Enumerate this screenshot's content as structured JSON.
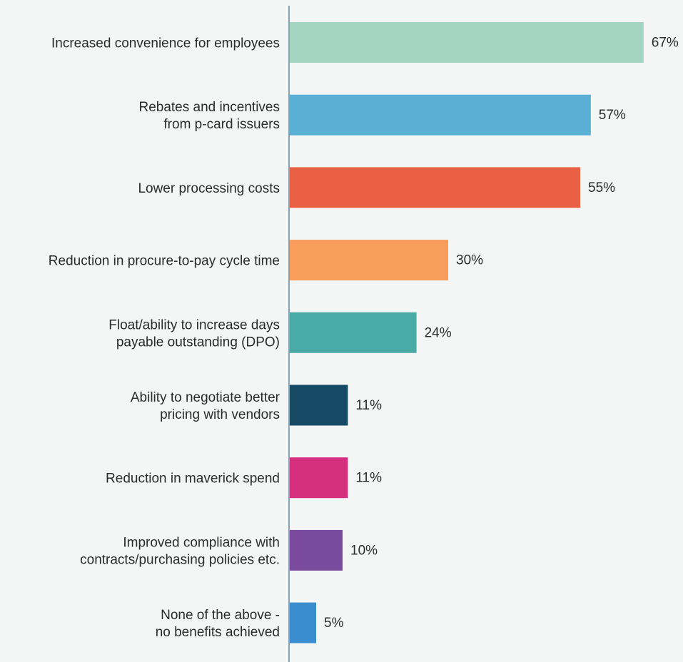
{
  "chart_data": {
    "type": "bar",
    "orientation": "horizontal",
    "categories": [
      [
        "Increased convenience for employees"
      ],
      [
        "Rebates and incentives",
        "from p-card issuers"
      ],
      [
        "Lower processing costs"
      ],
      [
        "Reduction in procure-to-pay cycle time"
      ],
      [
        "Float/ability to increase days",
        "payable outstanding (DPO)"
      ],
      [
        "Ability to negotiate better",
        "pricing with vendors"
      ],
      [
        "Reduction in maverick spend"
      ],
      [
        "Improved compliance with",
        "contracts/purchasing policies etc."
      ],
      [
        "None of the above -",
        "no benefits achieved"
      ]
    ],
    "values": [
      67,
      57,
      55,
      30,
      24,
      11,
      11,
      10,
      5
    ],
    "value_labels": [
      "67%",
      "57%",
      "55%",
      "30%",
      "24%",
      "11%",
      "11%",
      "10%",
      "5%"
    ],
    "colors": [
      "#a3d4c2",
      "#5aafd5",
      "#e96044",
      "#f89d5b",
      "#4aaba6",
      "#164a65",
      "#d72f80",
      "#7a4a9e",
      "#3a8dcf"
    ],
    "axis_color": "#8aa3b3",
    "title": "",
    "xlabel": "",
    "ylabel": ""
  }
}
